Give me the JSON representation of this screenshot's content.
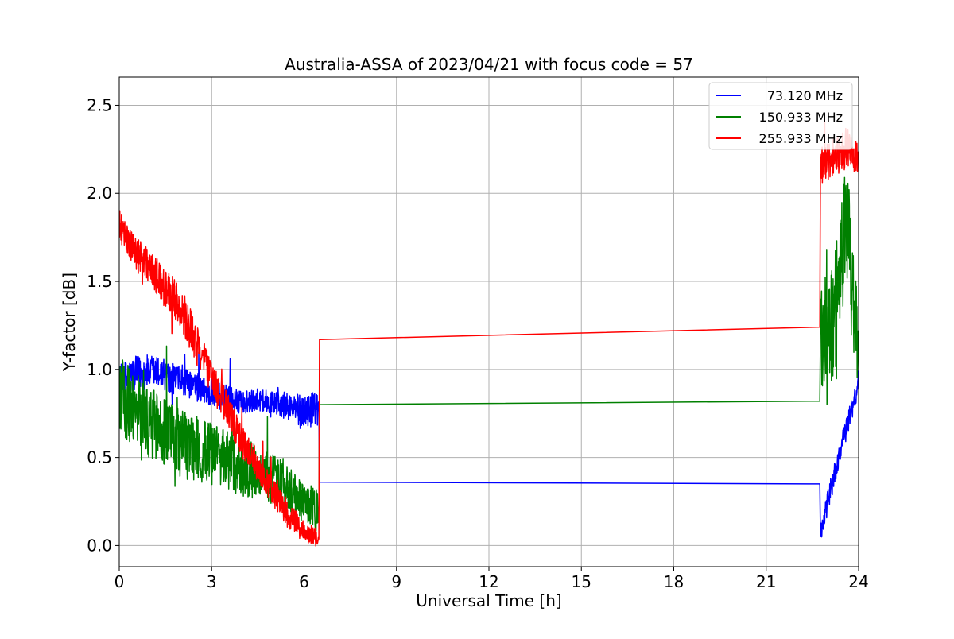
{
  "chart_data": {
    "type": "line",
    "title": "Australia-ASSA of 2023/04/21 with focus code = 57",
    "xlabel": "Universal Time [h]",
    "ylabel": "Y-factor [dB]",
    "xlim": [
      0,
      24
    ],
    "ylim": [
      -0.12,
      2.66
    ],
    "xticks": [
      0,
      3,
      6,
      9,
      12,
      15,
      18,
      21,
      24
    ],
    "yticks": [
      0.0,
      0.5,
      1.0,
      1.5,
      2.0,
      2.5
    ],
    "xtick_labels": [
      "0",
      "3",
      "6",
      "9",
      "12",
      "15",
      "18",
      "21",
      "24"
    ],
    "ytick_labels": [
      "0.0",
      "0.5",
      "1.0",
      "1.5",
      "2.0",
      "2.5"
    ],
    "grid": true,
    "legend_position": "top-right",
    "series": [
      {
        "name": "73.120 MHz",
        "color": "#0000ff",
        "points": [
          [
            0,
            0.92
          ],
          [
            0.5,
            0.97
          ],
          [
            1,
            0.99
          ],
          [
            1.5,
            0.97
          ],
          [
            2,
            0.93
          ],
          [
            2.5,
            0.9
          ],
          [
            3,
            0.86
          ],
          [
            3.5,
            0.83
          ],
          [
            4,
            0.81
          ],
          [
            4.5,
            0.83
          ],
          [
            5,
            0.81
          ],
          [
            5.5,
            0.79
          ],
          [
            6,
            0.76
          ],
          [
            6.48,
            0.78
          ],
          [
            6.5,
            0.36
          ],
          [
            22.74,
            0.35
          ],
          [
            22.76,
            0.05
          ],
          [
            23,
            0.25
          ],
          [
            23.5,
            0.6
          ],
          [
            24,
            0.92
          ]
        ],
        "noise": [
          0.14,
          0.13,
          0.12,
          0.12,
          0.1,
          0.1,
          0.1,
          0.1,
          0.08,
          0.08,
          0.08,
          0.1,
          0.12,
          0.12,
          0,
          0,
          0.08,
          0.08,
          0.08,
          0.08
        ]
      },
      {
        "name": "150.933 MHz",
        "color": "#008000",
        "points": [
          [
            0,
            0.85
          ],
          [
            0.5,
            0.78
          ],
          [
            1,
            0.7
          ],
          [
            1.5,
            0.64
          ],
          [
            2,
            0.58
          ],
          [
            2.5,
            0.55
          ],
          [
            3,
            0.52
          ],
          [
            3.5,
            0.48
          ],
          [
            4,
            0.44
          ],
          [
            4.5,
            0.42
          ],
          [
            5,
            0.38
          ],
          [
            5.5,
            0.32
          ],
          [
            6,
            0.24
          ],
          [
            6.48,
            0.2
          ],
          [
            6.5,
            0.8
          ],
          [
            22.74,
            0.82
          ],
          [
            22.76,
            1.2
          ],
          [
            23,
            1.1
          ],
          [
            23.3,
            1.4
          ],
          [
            23.6,
            1.9
          ],
          [
            24,
            1.0
          ]
        ],
        "noise": [
          0.28,
          0.26,
          0.26,
          0.24,
          0.24,
          0.24,
          0.22,
          0.22,
          0.2,
          0.2,
          0.18,
          0.16,
          0.14,
          0.14,
          0,
          0,
          0.35,
          0.4,
          0.45,
          0.45,
          0.4
        ]
      },
      {
        "name": "255.933 MHz",
        "color": "#ff0000",
        "points": [
          [
            0,
            1.82
          ],
          [
            0.5,
            1.66
          ],
          [
            1,
            1.58
          ],
          [
            1.5,
            1.46
          ],
          [
            2,
            1.35
          ],
          [
            2.5,
            1.15
          ],
          [
            3,
            0.95
          ],
          [
            3.5,
            0.78
          ],
          [
            4,
            0.58
          ],
          [
            4.5,
            0.44
          ],
          [
            5,
            0.3
          ],
          [
            5.5,
            0.17
          ],
          [
            6,
            0.08
          ],
          [
            6.48,
            0.04
          ],
          [
            6.5,
            1.17
          ],
          [
            22.74,
            1.24
          ],
          [
            22.76,
            2.15
          ],
          [
            23.2,
            2.2
          ],
          [
            23.6,
            2.25
          ],
          [
            24,
            2.2
          ]
        ],
        "noise": [
          0.12,
          0.12,
          0.12,
          0.14,
          0.16,
          0.14,
          0.12,
          0.12,
          0.12,
          0.1,
          0.1,
          0.1,
          0.08,
          0.06,
          0,
          0,
          0.14,
          0.14,
          0.16,
          0.1
        ]
      }
    ]
  }
}
